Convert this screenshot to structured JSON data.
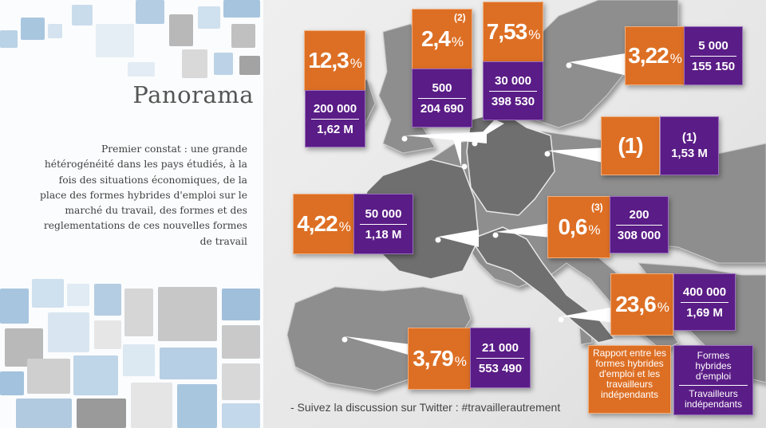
{
  "panel": {
    "title": "Panorama",
    "description": "Premier constat : une grande hétérogénéité dans les pays étudiés, à la fois des situations économiques, de la place des formes hybrides d'emploi sur le marché du travail, des formes et des reglementations de ces nouvelles formes de travail"
  },
  "colors": {
    "orange": "#dd6f24",
    "purple": "#5a1c86",
    "map_land": "#8e8e8e",
    "map_sea": "#e6e6e6"
  },
  "countries": [
    {
      "id": "uk",
      "ratio": "12,3",
      "unit": "%",
      "hybrid": "200 000",
      "independents": "1,62 M"
    },
    {
      "id": "belgium",
      "ratio": "2,4",
      "unit": "%",
      "note": "(2)",
      "hybrid": "500",
      "independents": "204 690"
    },
    {
      "id": "netherlands",
      "ratio": "7,53",
      "unit": "%",
      "hybrid": "30 000",
      "independents": "398 530"
    },
    {
      "id": "sweden",
      "ratio": "3,22",
      "unit": "%",
      "hybrid": "5 000",
      "independents": "155 150"
    },
    {
      "id": "germany",
      "ratio": "(1)",
      "hybrid": "(1)",
      "independents": "1,53 M"
    },
    {
      "id": "france",
      "ratio": "4,22",
      "unit": "%",
      "hybrid": "50 000",
      "independents": "1,18 M"
    },
    {
      "id": "austria",
      "ratio": "0,6",
      "unit": "%",
      "note": "(3)",
      "hybrid": "200",
      "independents": "308 000"
    },
    {
      "id": "italy",
      "ratio": "23,6",
      "unit": "%",
      "hybrid": "400 000",
      "independents": "1,69 M"
    },
    {
      "id": "spain",
      "ratio": "3,79",
      "unit": "%",
      "hybrid": "21 000",
      "independents": "553 490"
    }
  ],
  "legend": {
    "orange": "Rapport entre les formes hybrides d'emploi et les travailleurs indépendants",
    "purple_top": "Formes hybrides d'emploi",
    "purple_bottom": "Travailleurs indépendants"
  },
  "footer": "- Suivez la discussion sur Twitter : #travaillerautrement"
}
